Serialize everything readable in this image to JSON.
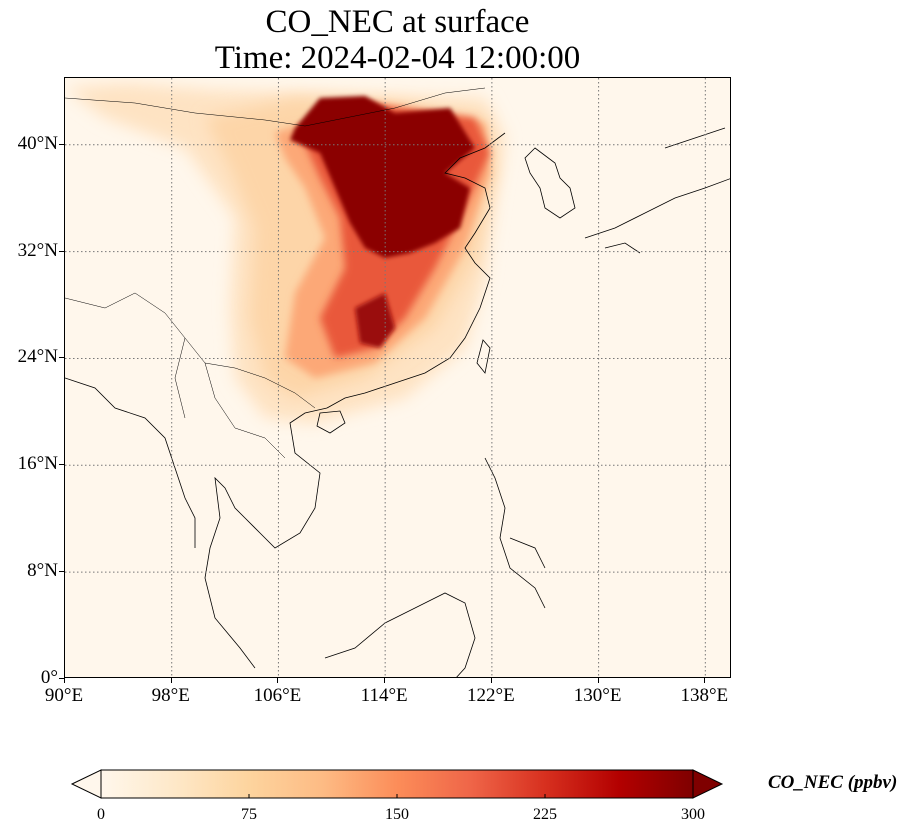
{
  "title": {
    "line1": "CO_NEC at surface",
    "line2": "Time: 2024-02-04 12:00:00"
  },
  "axes": {
    "lon_range": [
      90,
      140
    ],
    "lat_range": [
      0,
      45
    ],
    "lat_ticks": [
      {
        "value": 0,
        "label": "0°"
      },
      {
        "value": 8,
        "label": "8°N"
      },
      {
        "value": 16,
        "label": "16°N"
      },
      {
        "value": 24,
        "label": "24°N"
      },
      {
        "value": 32,
        "label": "32°N"
      },
      {
        "value": 40,
        "label": "40°N"
      }
    ],
    "lon_ticks": [
      {
        "value": 90,
        "label": "90°E"
      },
      {
        "value": 98,
        "label": "98°E"
      },
      {
        "value": 106,
        "label": "106°E"
      },
      {
        "value": 114,
        "label": "114°E"
      },
      {
        "value": 122,
        "label": "122°E"
      },
      {
        "value": 130,
        "label": "130°E"
      },
      {
        "value": 138,
        "label": "138°E"
      }
    ],
    "gridlines": "dotted"
  },
  "colorbar": {
    "title": "CO_NEC (ppbv)",
    "min": 0,
    "max": 300,
    "extend": "both",
    "colormap": "OrRd",
    "ticks": [
      {
        "value": 0,
        "label": "0"
      },
      {
        "value": 75,
        "label": "75"
      },
      {
        "value": 150,
        "label": "150"
      },
      {
        "value": 225,
        "label": "225"
      },
      {
        "value": 300,
        "label": "300"
      }
    ],
    "colors": [
      "#fff7ec",
      "#fee8c8",
      "#fdd49e",
      "#fdbb84",
      "#fc8d59",
      "#ef6548",
      "#d7301f",
      "#b30000",
      "#7f0000"
    ]
  }
}
